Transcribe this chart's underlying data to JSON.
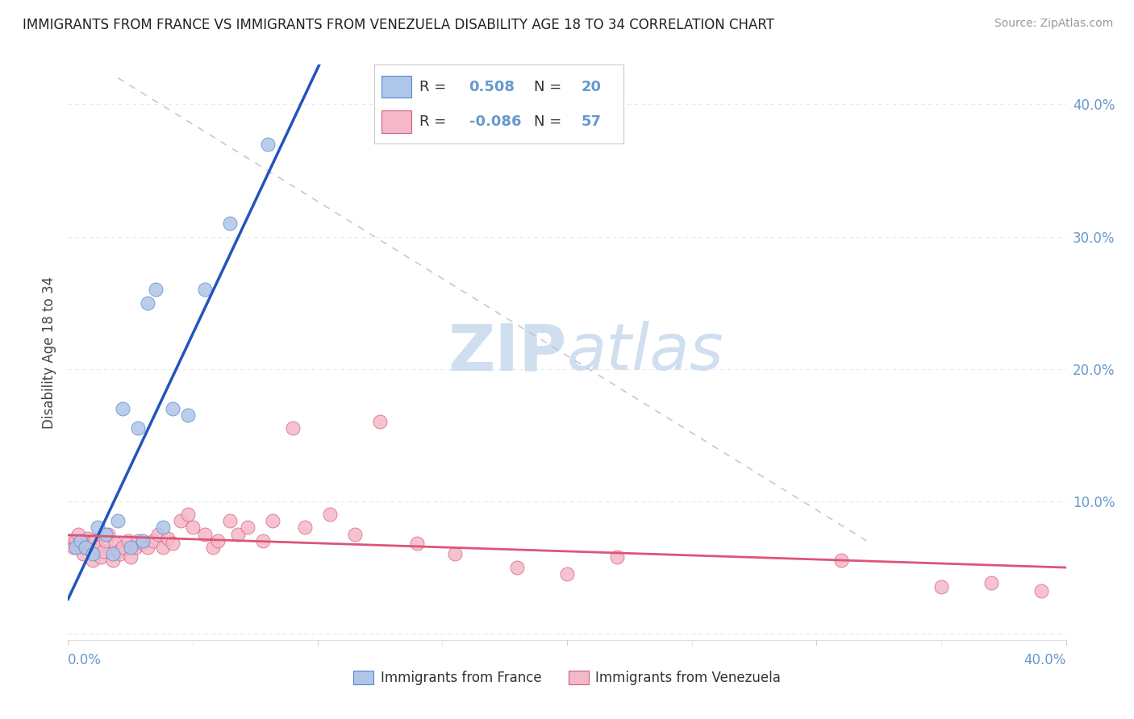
{
  "title": "IMMIGRANTS FROM FRANCE VS IMMIGRANTS FROM VENEZUELA DISABILITY AGE 18 TO 34 CORRELATION CHART",
  "source": "Source: ZipAtlas.com",
  "ylabel": "Disability Age 18 to 34",
  "xlim": [
    0.0,
    0.4
  ],
  "ylim": [
    -0.005,
    0.43
  ],
  "france_R": 0.508,
  "france_N": 20,
  "venezuela_R": -0.086,
  "venezuela_N": 57,
  "france_color": "#aec6e8",
  "venezuela_color": "#f5b8c8",
  "france_edge_color": "#5588cc",
  "venezuela_edge_color": "#d06080",
  "france_line_color": "#2255bb",
  "venezuela_line_color": "#dd5577",
  "ref_line_color": "#bbbbbb",
  "watermark_color": "#d0dff0",
  "background_color": "#ffffff",
  "grid_color": "#e8e8e8",
  "tick_color": "#6699cc",
  "legend_france": "Immigrants from France",
  "legend_venezuela": "Immigrants from Venezuela",
  "france_scatter_x": [
    0.003,
    0.005,
    0.007,
    0.01,
    0.012,
    0.015,
    0.018,
    0.02,
    0.022,
    0.025,
    0.028,
    0.03,
    0.032,
    0.035,
    0.038,
    0.042,
    0.048,
    0.055,
    0.065,
    0.08
  ],
  "france_scatter_y": [
    0.065,
    0.07,
    0.065,
    0.06,
    0.08,
    0.075,
    0.06,
    0.085,
    0.17,
    0.065,
    0.155,
    0.07,
    0.25,
    0.26,
    0.08,
    0.17,
    0.165,
    0.26,
    0.31,
    0.37
  ],
  "venezuela_scatter_x": [
    0.001,
    0.002,
    0.003,
    0.004,
    0.005,
    0.006,
    0.007,
    0.008,
    0.009,
    0.01,
    0.011,
    0.012,
    0.013,
    0.014,
    0.015,
    0.016,
    0.018,
    0.019,
    0.02,
    0.021,
    0.022,
    0.024,
    0.025,
    0.027,
    0.028,
    0.03,
    0.032,
    0.034,
    0.036,
    0.038,
    0.04,
    0.042,
    0.045,
    0.048,
    0.05,
    0.055,
    0.058,
    0.06,
    0.065,
    0.068,
    0.072,
    0.078,
    0.082,
    0.09,
    0.095,
    0.105,
    0.115,
    0.125,
    0.14,
    0.155,
    0.18,
    0.2,
    0.22,
    0.31,
    0.35,
    0.37,
    0.39
  ],
  "venezuela_scatter_y": [
    0.07,
    0.065,
    0.07,
    0.075,
    0.065,
    0.06,
    0.065,
    0.072,
    0.068,
    0.055,
    0.07,
    0.065,
    0.058,
    0.062,
    0.07,
    0.075,
    0.055,
    0.068,
    0.062,
    0.06,
    0.065,
    0.07,
    0.058,
    0.065,
    0.07,
    0.068,
    0.065,
    0.07,
    0.075,
    0.065,
    0.072,
    0.068,
    0.085,
    0.09,
    0.08,
    0.075,
    0.065,
    0.07,
    0.085,
    0.075,
    0.08,
    0.07,
    0.085,
    0.155,
    0.08,
    0.09,
    0.075,
    0.16,
    0.068,
    0.06,
    0.05,
    0.045,
    0.058,
    0.055,
    0.035,
    0.038,
    0.032
  ],
  "ref_line_x": [
    0.02,
    0.32
  ],
  "ref_line_y": [
    0.42,
    0.07
  ]
}
